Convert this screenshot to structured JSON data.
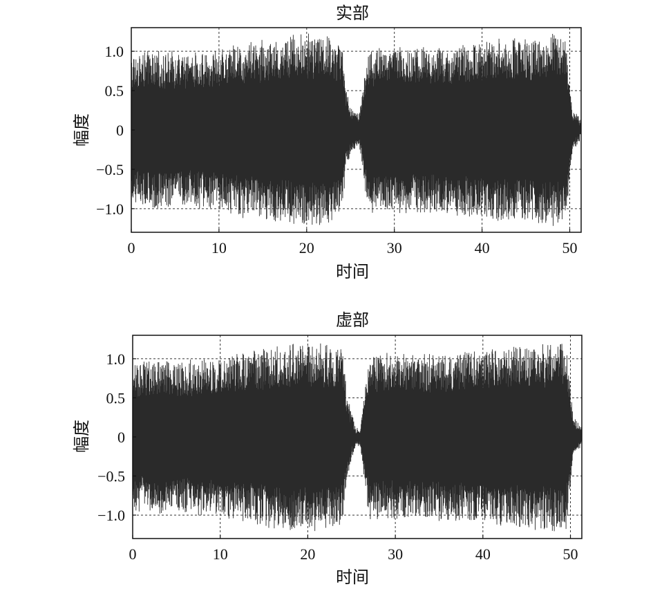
{
  "chart_data": [
    {
      "type": "line",
      "title": "实部",
      "xlabel": "时间",
      "ylabel": "幅度",
      "xlim": [
        0,
        51.3
      ],
      "ylim": [
        -1.3,
        1.3
      ],
      "xticks": [
        0,
        10,
        20,
        30,
        40,
        50
      ],
      "xtick_labels": [
        "0",
        "10",
        "20",
        "30",
        "40",
        "50"
      ],
      "yticks": [
        1.0,
        0.5,
        0,
        -0.5,
        -1.0
      ],
      "ytick_labels": [
        "1.0",
        "0.5",
        "0",
        "−0.5",
        "−1.0"
      ],
      "grid": true,
      "color": "#2a2a2a",
      "series": [
        {
          "x": [
            0,
            2,
            4,
            6,
            8,
            10,
            12,
            14,
            16,
            18,
            20,
            22,
            23,
            24,
            24.5,
            25,
            25.5,
            26,
            27,
            28,
            30,
            32,
            34,
            36,
            38,
            40,
            42,
            44,
            46,
            48,
            49.5,
            50.3,
            51,
            51.3
          ],
          "envelope": [
            0.95,
            0.98,
            0.98,
            0.97,
            0.97,
            1.0,
            1.08,
            1.12,
            1.15,
            1.2,
            1.22,
            1.2,
            1.15,
            1.1,
            0.5,
            0.3,
            0.25,
            0.2,
            1.02,
            1.05,
            1.03,
            1.05,
            1.05,
            1.05,
            1.1,
            1.12,
            1.15,
            1.17,
            1.18,
            1.2,
            1.2,
            0.25,
            0.15,
            0.1
          ]
        }
      ]
    },
    {
      "type": "line",
      "title": "虚部",
      "xlabel": "时间",
      "ylabel": "幅度",
      "xlim": [
        0,
        51.3
      ],
      "ylim": [
        -1.3,
        1.3
      ],
      "xticks": [
        0,
        10,
        20,
        30,
        40,
        50
      ],
      "xtick_labels": [
        "0",
        "10",
        "20",
        "30",
        "40",
        "50"
      ],
      "yticks": [
        1.0,
        0.5,
        0,
        -0.5,
        -1.0
      ],
      "ytick_labels": [
        "1.0",
        "0.5",
        "0",
        "−0.5",
        "−1.0"
      ],
      "grid": true,
      "color": "#2a2a2a",
      "series": [
        {
          "x": [
            0,
            2,
            4,
            6,
            8,
            10,
            12,
            14,
            16,
            18,
            20,
            22,
            23,
            24,
            24.5,
            25,
            25.5,
            26,
            27,
            28,
            30,
            32,
            34,
            36,
            38,
            40,
            42,
            44,
            46,
            48,
            49.5,
            50.3,
            51,
            51.3
          ],
          "envelope": [
            0.95,
            0.97,
            0.97,
            0.97,
            0.98,
            1.0,
            1.06,
            1.1,
            1.15,
            1.2,
            1.2,
            1.18,
            1.15,
            1.1,
            0.5,
            0.3,
            0.1,
            0.1,
            1.05,
            1.06,
            1.05,
            1.05,
            1.05,
            1.06,
            1.08,
            1.1,
            1.12,
            1.15,
            1.17,
            1.2,
            1.22,
            0.25,
            0.15,
            0.1
          ]
        }
      ]
    }
  ]
}
